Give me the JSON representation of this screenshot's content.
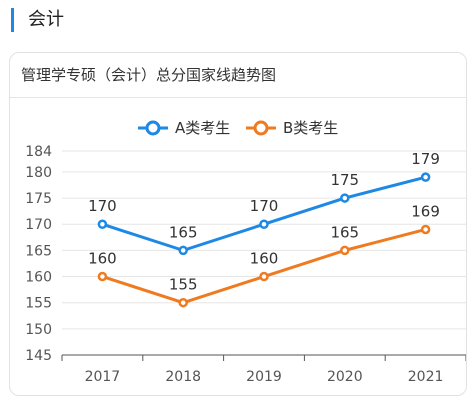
{
  "header": {
    "title": "会计",
    "accent_color": "#1e88e5"
  },
  "card": {
    "title": "管理学专硕（会计）总分国家线趋势图"
  },
  "chart_data": {
    "type": "line",
    "title": "管理学专硕（会计）总分国家线趋势图",
    "categories": [
      "2017",
      "2018",
      "2019",
      "2020",
      "2021"
    ],
    "series": [
      {
        "name": "A类考生",
        "values": [
          170,
          165,
          170,
          175,
          179
        ],
        "color": "#1e88e5"
      },
      {
        "name": "B类考生",
        "values": [
          160,
          155,
          160,
          165,
          169
        ],
        "color": "#ef7a1f"
      }
    ],
    "y_ticks": [
      145,
      150,
      155,
      160,
      165,
      170,
      175,
      180,
      184
    ],
    "ylim": [
      145,
      184
    ],
    "xlabel": "",
    "ylabel": "",
    "grid": true,
    "legend_position": "top-center",
    "data_labels": true
  }
}
